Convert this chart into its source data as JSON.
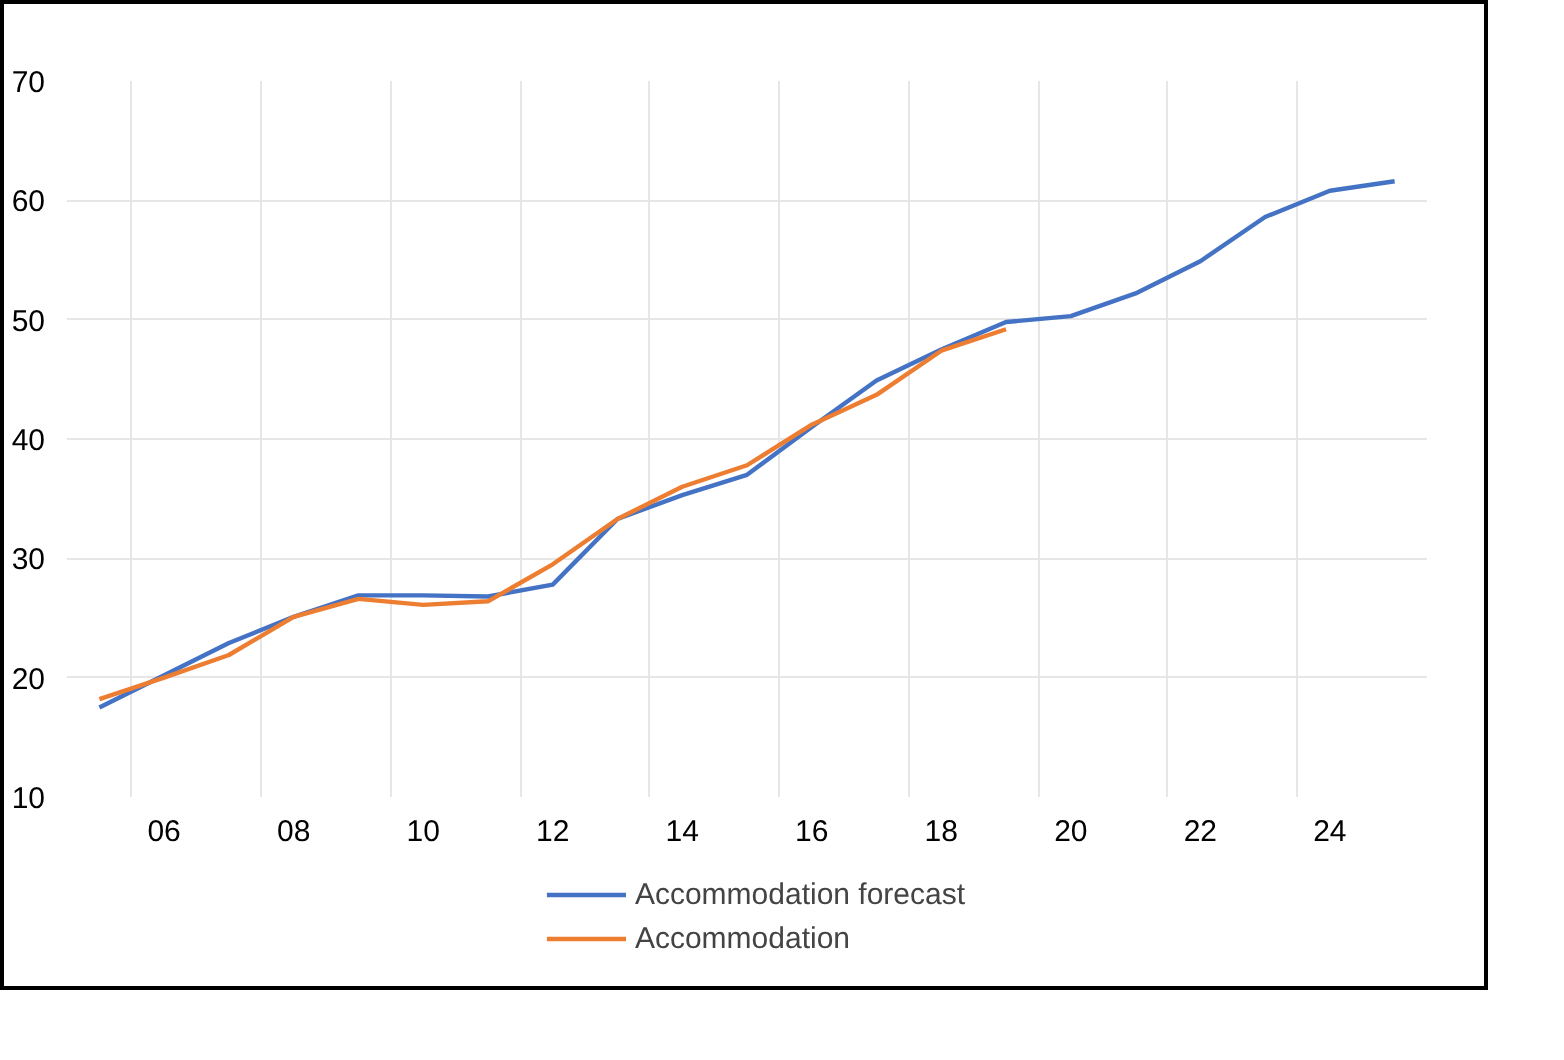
{
  "chart_data": {
    "type": "line",
    "categories": [
      null,
      "06",
      null,
      "08",
      null,
      "10",
      null,
      "12",
      null,
      "14",
      null,
      "16",
      null,
      "18",
      null,
      "20",
      null,
      "22",
      null,
      "24",
      null
    ],
    "series": [
      {
        "name": "Accommodation forecast",
        "color": "#4472c4",
        "values": [
          17.5,
          20.2,
          22.9,
          25.1,
          26.9,
          26.9,
          26.8,
          27.8,
          33.3,
          35.3,
          37.0,
          41.0,
          44.9,
          47.5,
          49.8,
          50.3,
          52.2,
          54.9,
          58.6,
          60.8,
          61.6
        ]
      },
      {
        "name": "Accommodation",
        "color": "#ed7d31",
        "values": [
          18.2,
          20.0,
          21.9,
          25.1,
          26.6,
          26.1,
          26.4,
          29.5,
          33.3,
          36.0,
          37.8,
          41.2,
          43.7,
          47.4,
          49.2,
          null,
          null,
          null,
          null,
          null,
          null
        ]
      }
    ],
    "ylim": [
      10,
      70
    ],
    "yticks": [
      10,
      20,
      30,
      40,
      50,
      60,
      70
    ],
    "grid": true,
    "legend": "bottom",
    "marker": "none",
    "line_style": "solid"
  }
}
